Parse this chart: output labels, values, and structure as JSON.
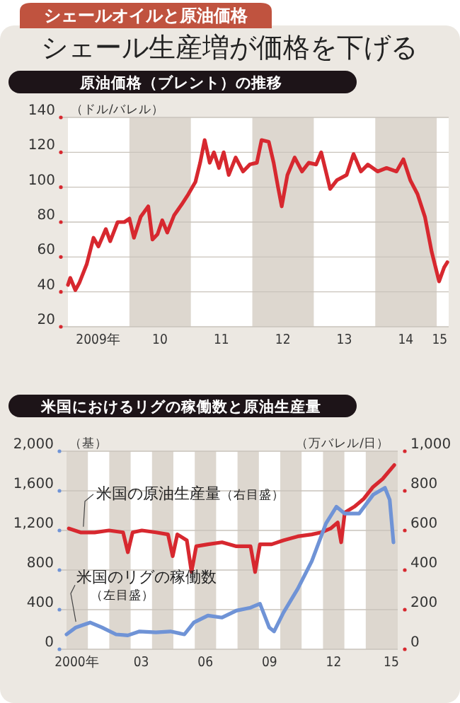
{
  "chart_data": [
    {
      "type": "line",
      "annotations": [
        "シェールオイルと原油価格"
      ],
      "title": "シェール生産増が価格を下げる",
      "subtitle": "原油価格（ブレント）の推移",
      "ylabel": "（ドル/バレル）",
      "xlim": [
        "2009-01-01",
        "2015-03-13"
      ],
      "xticks": [
        {
          "value": "2009-07-01",
          "label": "2009年"
        },
        {
          "value": "2010-07-01",
          "label": "10"
        },
        {
          "value": "2011-07-01",
          "label": "11"
        },
        {
          "value": "2012-07-01",
          "label": "12"
        },
        {
          "value": "2013-07-01",
          "label": "13"
        },
        {
          "value": "2014-07-01",
          "label": "14"
        },
        {
          "value": "2015-01-19",
          "label": "15"
        }
      ],
      "ylim": [
        20,
        140
      ],
      "yticks": [
        20,
        40,
        60,
        80,
        100,
        120,
        140
      ],
      "grid": "y",
      "bands": [
        {
          "axis": "x",
          "from": "2010-01-01",
          "to": "2011-01-01",
          "color": "#ddd7cf"
        },
        {
          "axis": "x",
          "from": "2012-01-01",
          "to": "2013-01-01",
          "color": "#ddd7cf"
        },
        {
          "axis": "x",
          "from": "2014-01-01",
          "to": "2015-01-01",
          "color": "#ddd7cf"
        }
      ],
      "series": [
        {
          "color": "#d7282f",
          "x": [
            "2009-01-01",
            "2009-01-15",
            "2009-02-14",
            "2009-03-09",
            "2009-04-23",
            "2009-06-02",
            "2009-07-01",
            "2009-08-14",
            "2009-09-09",
            "2009-10-23",
            "2009-12-02",
            "2010-01-01",
            "2010-01-28",
            "2010-03-09",
            "2010-04-23",
            "2010-05-18",
            "2010-06-17",
            "2010-07-15",
            "2010-08-14",
            "2010-09-24",
            "2010-11-07",
            "2010-12-17",
            "2011-01-28",
            "2011-02-25",
            "2011-03-24",
            "2011-04-23",
            "2011-05-18",
            "2011-06-17",
            "2011-07-15",
            "2011-08-14",
            "2011-09-24",
            "2011-11-07",
            "2011-12-17",
            "2012-01-28",
            "2012-02-25",
            "2012-04-08",
            "2012-05-07",
            "2012-06-02",
            "2012-06-24",
            "2012-07-28",
            "2012-09-09",
            "2012-10-23",
            "2012-12-02",
            "2013-01-15",
            "2013-02-14",
            "2013-03-09",
            "2013-04-08",
            "2013-05-18",
            "2013-07-15",
            "2013-08-25",
            "2013-10-08",
            "2013-11-18",
            "2014-01-15",
            "2014-03-09",
            "2014-05-07",
            "2014-06-17",
            "2014-07-28",
            "2014-09-09",
            "2014-10-23",
            "2014-12-02",
            "2015-01-15",
            "2015-02-14",
            "2015-03-05"
          ],
          "values": [
            44,
            48,
            41,
            45,
            56,
            71,
            66,
            76,
            69,
            80,
            80,
            82,
            71,
            83,
            89,
            70,
            73,
            81,
            74,
            84,
            90,
            96,
            103,
            114,
            127,
            114,
            120,
            111,
            120,
            107,
            117,
            109,
            113,
            114,
            127,
            126,
            114,
            100,
            89,
            107,
            117,
            109,
            114,
            113,
            120,
            111,
            99,
            104,
            107,
            119,
            109,
            113,
            109,
            111,
            109,
            116,
            104,
            96,
            83,
            63,
            46,
            54,
            57
          ]
        }
      ]
    },
    {
      "type": "line",
      "title": "米国におけるリグの稼働数と原油生産量",
      "ylabel": "（基）",
      "y2label": "（万バレル/日）",
      "xlim": [
        "2000-01-01",
        "2015-07-01"
      ],
      "xticks": [
        {
          "value": "2000-07-01",
          "label": "2000年"
        },
        {
          "value": "2003-07-01",
          "label": "03"
        },
        {
          "value": "2006-07-01",
          "label": "06"
        },
        {
          "value": "2009-07-01",
          "label": "09"
        },
        {
          "value": "2012-07-01",
          "label": "12"
        },
        {
          "value": "2015-03-14",
          "label": "15"
        }
      ],
      "ylim": [
        0,
        2000
      ],
      "yticks": [
        0,
        {
          "value": 400,
          "label": "400"
        },
        {
          "value": 800,
          "label": "800"
        },
        {
          "value": 1200,
          "label": "1,200"
        },
        {
          "value": 1600,
          "label": "1,600"
        },
        {
          "value": 2000,
          "label": "2,000"
        }
      ],
      "y2lim": [
        0,
        1000
      ],
      "y2ticks": [
        0,
        200,
        400,
        600,
        800,
        {
          "value": 1000,
          "label": "1,000"
        }
      ],
      "grid": "y",
      "bands": [
        {
          "axis": "x",
          "from": "2001-01-01",
          "to": "2002-01-01",
          "color": "#ffffff"
        },
        {
          "axis": "x",
          "from": "2003-01-01",
          "to": "2004-01-01",
          "color": "#ffffff"
        },
        {
          "axis": "x",
          "from": "2005-01-01",
          "to": "2006-01-01",
          "color": "#ffffff"
        },
        {
          "axis": "x",
          "from": "2007-01-01",
          "to": "2008-01-01",
          "color": "#ffffff"
        },
        {
          "axis": "x",
          "from": "2009-01-01",
          "to": "2010-01-01",
          "color": "#ffffff"
        },
        {
          "axis": "x",
          "from": "2011-01-01",
          "to": "2012-01-01",
          "color": "#ffffff"
        },
        {
          "axis": "x",
          "from": "2013-01-01",
          "to": "2014-01-01",
          "color": "#ffffff"
        }
      ],
      "series": [
        {
          "name": "米国の原油生産量（右目盛）",
          "color": "#d7282f",
          "axis": "y2",
          "x": [
            "2000-02-10",
            "2000-08-28",
            "2001-04-26",
            "2001-12-27",
            "2002-08-25",
            "2002-11-14",
            "2003-02-03",
            "2003-07-12",
            "2004-03-09",
            "2004-10-01",
            "2004-12-20",
            "2005-03-09",
            "2005-08-18",
            "2005-11-07",
            "2006-01-26",
            "2006-08-14",
            "2007-04-12",
            "2007-12-13",
            "2008-08-11",
            "2008-10-28",
            "2009-01-19",
            "2009-08-07",
            "2010-02-25",
            "2010-10-26",
            "2011-06-24",
            "2011-12-02",
            "2012-05-11",
            "2012-09-09",
            "2012-11-07",
            "2013-01-08",
            "2013-06-20",
            "2013-11-28",
            "2014-05-07",
            "2014-10-15",
            "2015-05-03"
          ],
          "values": [
            610,
            590,
            590,
            600,
            590,
            490,
            590,
            600,
            590,
            580,
            470,
            580,
            550,
            390,
            520,
            530,
            540,
            520,
            520,
            390,
            530,
            530,
            550,
            570,
            580,
            590,
            610,
            640,
            540,
            690,
            720,
            760,
            820,
            860,
            930
          ]
        },
        {
          "name": "米国のリグの稼働数（左目盛）",
          "color": "#6f93d6",
          "x": [
            "2000-01-01",
            "2000-06-09",
            "2001-02-07",
            "2001-08-28",
            "2002-04-26",
            "2002-11-14",
            "2003-06-02",
            "2004-03-09",
            "2004-11-11",
            "2005-07-08",
            "2005-12-17",
            "2006-08-14",
            "2007-04-12",
            "2007-12-13",
            "2008-08-11",
            "2009-01-19",
            "2009-06-27",
            "2009-09-17",
            "2010-02-25",
            "2010-10-26",
            "2011-06-24",
            "2012-02-21",
            "2012-08-18",
            "2013-01-08",
            "2013-09-09",
            "2014-05-07",
            "2014-11-25",
            "2015-02-14",
            "2015-04-19"
          ],
          "values": [
            150,
            220,
            270,
            220,
            150,
            140,
            180,
            170,
            180,
            150,
            270,
            340,
            320,
            390,
            420,
            460,
            220,
            180,
            370,
            610,
            890,
            1270,
            1440,
            1370,
            1370,
            1560,
            1630,
            1510,
            1080
          ]
        }
      ]
    }
  ]
}
